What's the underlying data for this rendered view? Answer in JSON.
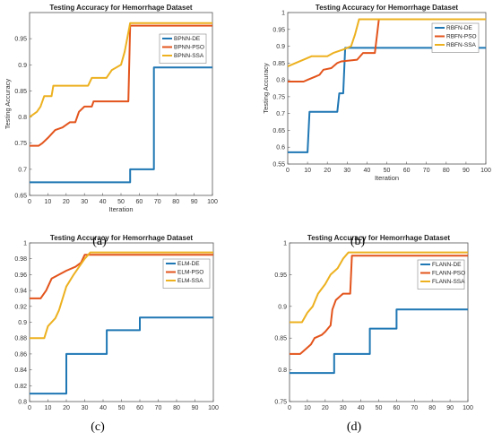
{
  "captions": [
    "(a)",
    "(b)",
    "(c)",
    "(d)"
  ],
  "colors": {
    "de": "#1f77b4",
    "pso": "#e3541c",
    "ssa": "#edb120"
  },
  "chart_data": [
    {
      "type": "line",
      "title": "Testing Accuracy for Hemorrhage Dataset",
      "xlabel": "Iteration",
      "ylabel": "Testing Accuracy",
      "xlim": [
        0,
        100
      ],
      "ylim": [
        0.65,
        1.0
      ],
      "xticks": [
        "0",
        "10",
        "20",
        "30",
        "40",
        "50",
        "60",
        "70",
        "80",
        "90",
        "100"
      ],
      "yticks": [
        "0.65",
        "0.7",
        "0.75",
        "0.8",
        "0.85",
        "0.9",
        "0.95"
      ],
      "legend_position": "top-right",
      "series": [
        {
          "name": "BPNN-DE",
          "color": "#1f77b4",
          "points": [
            [
              0,
              0.675
            ],
            [
              55,
              0.675
            ],
            [
              55,
              0.7
            ],
            [
              68,
              0.7
            ],
            [
              68,
              0.895
            ],
            [
              100,
              0.895
            ]
          ]
        },
        {
          "name": "BPNN-PSO",
          "color": "#e3541c",
          "points": [
            [
              0,
              0.745
            ],
            [
              5,
              0.745
            ],
            [
              7,
              0.75
            ],
            [
              10,
              0.76
            ],
            [
              14,
              0.775
            ],
            [
              18,
              0.78
            ],
            [
              22,
              0.79
            ],
            [
              25,
              0.79
            ],
            [
              27,
              0.81
            ],
            [
              30,
              0.82
            ],
            [
              34,
              0.82
            ],
            [
              35,
              0.83
            ],
            [
              54,
              0.83
            ],
            [
              55,
              0.975
            ],
            [
              100,
              0.975
            ]
          ]
        },
        {
          "name": "BPNN-SSA",
          "color": "#edb120",
          "points": [
            [
              0,
              0.8
            ],
            [
              4,
              0.81
            ],
            [
              6,
              0.82
            ],
            [
              8,
              0.84
            ],
            [
              12,
              0.84
            ],
            [
              13,
              0.86
            ],
            [
              32,
              0.86
            ],
            [
              34,
              0.875
            ],
            [
              42,
              0.875
            ],
            [
              45,
              0.89
            ],
            [
              50,
              0.9
            ],
            [
              52,
              0.925
            ],
            [
              55,
              0.98
            ],
            [
              100,
              0.98
            ]
          ]
        }
      ]
    },
    {
      "type": "line",
      "title": "Testing Accuracy for Hemorrhage Dataset",
      "xlabel": "Iteration",
      "ylabel": "Testing Accuracy",
      "xlim": [
        0,
        100
      ],
      "ylim": [
        0.55,
        1.0
      ],
      "xticks": [
        "0",
        "10",
        "20",
        "30",
        "40",
        "50",
        "60",
        "70",
        "80",
        "90",
        "100"
      ],
      "yticks": [
        "0.55",
        "0.6",
        "0.65",
        "0.7",
        "0.75",
        "0.8",
        "0.85",
        "0.9",
        "0.95",
        "1"
      ],
      "legend_position": "top-right",
      "series": [
        {
          "name": "RBFN-DE",
          "color": "#1f77b4",
          "points": [
            [
              0,
              0.585
            ],
            [
              10,
              0.585
            ],
            [
              11,
              0.705
            ],
            [
              25,
              0.705
            ],
            [
              26,
              0.76
            ],
            [
              28,
              0.76
            ],
            [
              29,
              0.895
            ],
            [
              100,
              0.895
            ]
          ]
        },
        {
          "name": "RBFN-PSO",
          "color": "#e3541c",
          "points": [
            [
              0,
              0.795
            ],
            [
              8,
              0.795
            ],
            [
              10,
              0.8
            ],
            [
              14,
              0.81
            ],
            [
              16,
              0.815
            ],
            [
              18,
              0.83
            ],
            [
              22,
              0.835
            ],
            [
              25,
              0.85
            ],
            [
              27,
              0.855
            ],
            [
              35,
              0.86
            ],
            [
              38,
              0.88
            ],
            [
              44,
              0.88
            ],
            [
              46,
              0.98
            ],
            [
              100,
              0.98
            ]
          ]
        },
        {
          "name": "RBFN-SSA",
          "color": "#edb120",
          "points": [
            [
              0,
              0.84
            ],
            [
              4,
              0.85
            ],
            [
              8,
              0.86
            ],
            [
              12,
              0.87
            ],
            [
              20,
              0.87
            ],
            [
              23,
              0.88
            ],
            [
              28,
              0.89
            ],
            [
              32,
              0.9
            ],
            [
              34,
              0.935
            ],
            [
              36,
              0.98
            ],
            [
              100,
              0.98
            ]
          ]
        }
      ]
    },
    {
      "type": "line",
      "title": "Testing Accuracy for Hemorrhage Dataset",
      "xlabel": "",
      "ylabel": "",
      "xlim": [
        0,
        100
      ],
      "ylim": [
        0.8,
        1.0
      ],
      "xticks": [
        "0",
        "10",
        "20",
        "30",
        "40",
        "50",
        "60",
        "70",
        "80",
        "90",
        "100"
      ],
      "yticks": [
        "0.8",
        "0.82",
        "0.84",
        "0.86",
        "0.88",
        "0.9",
        "0.92",
        "0.94",
        "0.96",
        "0.98",
        "1"
      ],
      "legend_position": "top-right",
      "series": [
        {
          "name": "ELM-DE",
          "color": "#1f77b4",
          "points": [
            [
              0,
              0.81
            ],
            [
              20,
              0.81
            ],
            [
              20,
              0.86
            ],
            [
              42,
              0.86
            ],
            [
              42,
              0.89
            ],
            [
              60,
              0.89
            ],
            [
              60,
              0.906
            ],
            [
              100,
              0.906
            ]
          ]
        },
        {
          "name": "ELM-PSO",
          "color": "#e3541c",
          "points": [
            [
              0,
              0.93
            ],
            [
              6,
              0.93
            ],
            [
              9,
              0.94
            ],
            [
              12,
              0.955
            ],
            [
              16,
              0.96
            ],
            [
              20,
              0.965
            ],
            [
              25,
              0.97
            ],
            [
              28,
              0.975
            ],
            [
              30,
              0.985
            ],
            [
              100,
              0.985
            ]
          ]
        },
        {
          "name": "ELM-SSA",
          "color": "#edb120",
          "points": [
            [
              0,
              0.88
            ],
            [
              8,
              0.88
            ],
            [
              10,
              0.895
            ],
            [
              14,
              0.905
            ],
            [
              16,
              0.915
            ],
            [
              18,
              0.93
            ],
            [
              20,
              0.945
            ],
            [
              24,
              0.96
            ],
            [
              27,
              0.97
            ],
            [
              30,
              0.98
            ],
            [
              33,
              0.988
            ],
            [
              100,
              0.988
            ]
          ]
        }
      ]
    },
    {
      "type": "line",
      "title": "Testing Accuracy for Hemorrhage Dataset",
      "xlabel": "",
      "ylabel": "",
      "xlim": [
        0,
        100
      ],
      "ylim": [
        0.75,
        1.0
      ],
      "xticks": [
        "0",
        "10",
        "20",
        "30",
        "40",
        "50",
        "60",
        "70",
        "80",
        "90",
        "100"
      ],
      "yticks": [
        "0.75",
        "0.8",
        "0.85",
        "0.9",
        "0.95",
        "1"
      ],
      "legend_position": "top-right",
      "series": [
        {
          "name": "FLANN-DE",
          "color": "#1f77b4",
          "points": [
            [
              0,
              0.795
            ],
            [
              25,
              0.795
            ],
            [
              25,
              0.825
            ],
            [
              45,
              0.825
            ],
            [
              45,
              0.865
            ],
            [
              60,
              0.865
            ],
            [
              60,
              0.895
            ],
            [
              100,
              0.895
            ]
          ]
        },
        {
          "name": "FLANN-PSO",
          "color": "#e3541c",
          "points": [
            [
              0,
              0.825
            ],
            [
              6,
              0.825
            ],
            [
              8,
              0.83
            ],
            [
              12,
              0.84
            ],
            [
              14,
              0.85
            ],
            [
              18,
              0.855
            ],
            [
              20,
              0.86
            ],
            [
              23,
              0.87
            ],
            [
              24,
              0.895
            ],
            [
              26,
              0.91
            ],
            [
              30,
              0.92
            ],
            [
              34,
              0.92
            ],
            [
              35,
              0.98
            ],
            [
              100,
              0.98
            ]
          ]
        },
        {
          "name": "FLANN-SSA",
          "color": "#edb120",
          "points": [
            [
              0,
              0.875
            ],
            [
              7,
              0.875
            ],
            [
              10,
              0.89
            ],
            [
              13,
              0.9
            ],
            [
              16,
              0.92
            ],
            [
              20,
              0.935
            ],
            [
              23,
              0.95
            ],
            [
              27,
              0.96
            ],
            [
              30,
              0.975
            ],
            [
              33,
              0.985
            ],
            [
              100,
              0.985
            ]
          ]
        }
      ]
    }
  ]
}
